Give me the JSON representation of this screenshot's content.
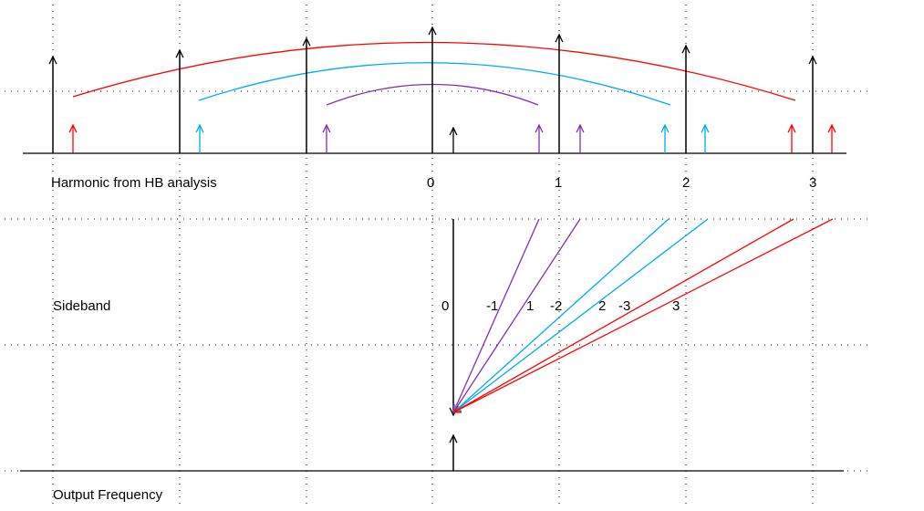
{
  "harmonic_section": {
    "label": "Harmonic  from HB analysis",
    "harmonics": [
      0,
      1,
      2,
      3
    ]
  },
  "sideband_section": {
    "label": "Sideband",
    "sidebands": [
      0,
      -1,
      1,
      -2,
      2,
      -3,
      3
    ]
  },
  "output_section": {
    "label": "Output Frequency"
  }
}
